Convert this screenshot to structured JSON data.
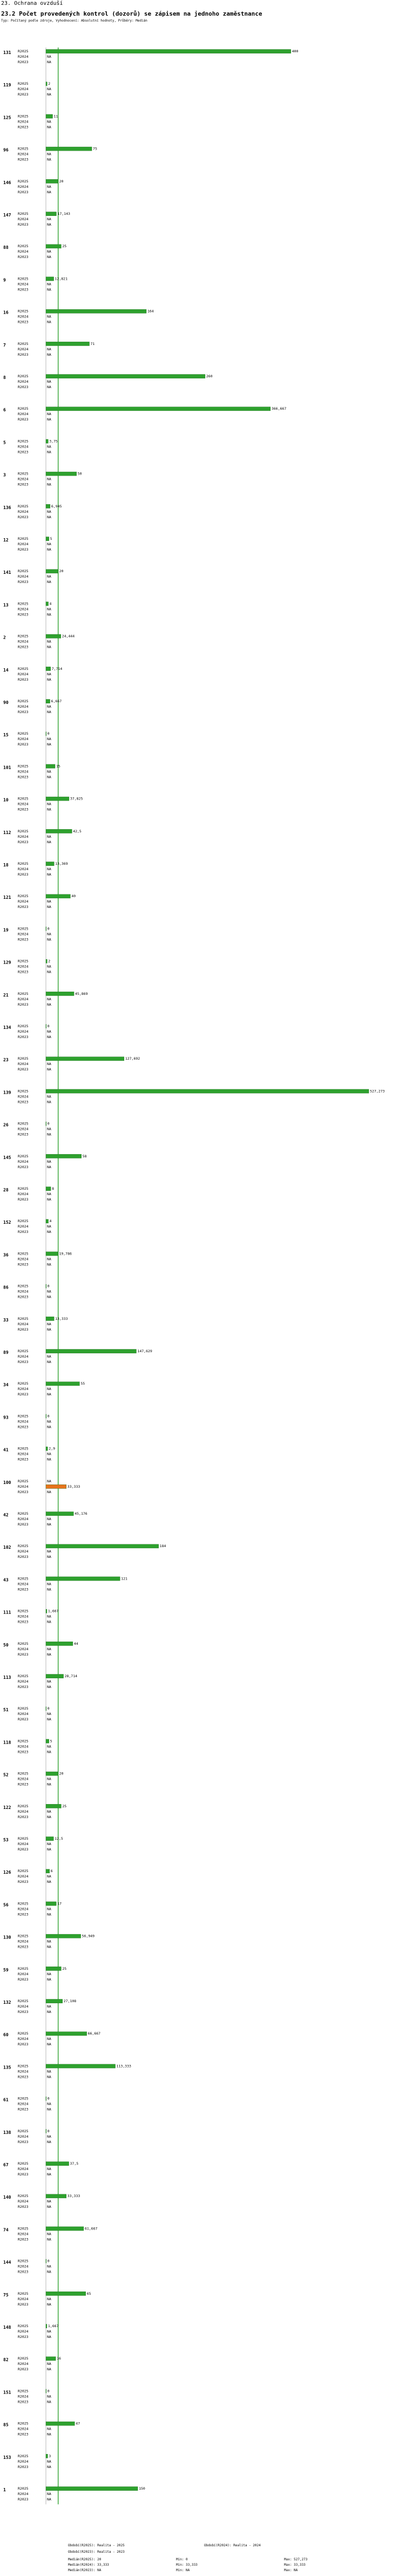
{
  "header": {
    "section": "23. Ochrana ovzduší",
    "title": "23.2 Počet provedených kontrol (dozorů) se zápisem na jednoho zaměstnance",
    "subtitle": "Typ: Počítaný podle zdroje, Vyhodnocení: Absolutní hodnoty, Průběry: Medián"
  },
  "footer": {
    "legend": [
      "Období(R2025): Realita - 2025",
      "Období(R2024): Realita - 2024",
      "Období(R2023): Realita - 2023"
    ],
    "stats_labels": [
      "Medián(R2025): 20",
      "Medián(R2024): 33,333",
      "Medián(R2023): NA"
    ],
    "stats_min": [
      "Min: 0",
      "Min: 33,333",
      "Min: NA"
    ],
    "stats_max": [
      "Max: 527,273",
      "Max: 33,333",
      "Max: NA"
    ]
  },
  "chart_data": {
    "type": "bar",
    "orientation": "horizontal",
    "periods": [
      "R2025",
      "R2024",
      "R2023"
    ],
    "xlim": [
      0,
      527.273
    ],
    "median_line": 20,
    "colors": {
      "default": "#2ea12e",
      "highlight": "#e8741c",
      "median": "#2ea12e"
    },
    "groups": [
      {
        "category": "131",
        "values": [
          400,
          null,
          null
        ],
        "labels": [
          "400",
          "NA",
          "NA"
        ]
      },
      {
        "category": "119",
        "values": [
          2,
          null,
          null
        ],
        "labels": [
          "2",
          "NA",
          "NA"
        ]
      },
      {
        "category": "125",
        "values": [
          11,
          null,
          null
        ],
        "labels": [
          "11",
          "NA",
          "NA"
        ]
      },
      {
        "category": "96",
        "values": [
          75,
          null,
          null
        ],
        "labels": [
          "75",
          "NA",
          "NA"
        ]
      },
      {
        "category": "146",
        "values": [
          20,
          null,
          null
        ],
        "labels": [
          "20",
          "NA",
          "NA"
        ]
      },
      {
        "category": "147",
        "values": [
          17.143,
          null,
          null
        ],
        "labels": [
          "17,143",
          "NA",
          "NA"
        ]
      },
      {
        "category": "88",
        "values": [
          25,
          null,
          null
        ],
        "labels": [
          "25",
          "NA",
          "NA"
        ]
      },
      {
        "category": "9",
        "values": [
          12.821,
          null,
          null
        ],
        "labels": [
          "12,821",
          "NA",
          "NA"
        ]
      },
      {
        "category": "16",
        "values": [
          164,
          null,
          null
        ],
        "labels": [
          "164",
          "NA",
          "NA"
        ]
      },
      {
        "category": "7",
        "values": [
          71,
          null,
          null
        ],
        "labels": [
          "71",
          "NA",
          "NA"
        ]
      },
      {
        "category": "8",
        "values": [
          260,
          null,
          null
        ],
        "labels": [
          "260",
          "NA",
          "NA"
        ]
      },
      {
        "category": "6",
        "values": [
          366.667,
          null,
          null
        ],
        "labels": [
          "366,667",
          "NA",
          "NA"
        ]
      },
      {
        "category": "5",
        "values": [
          3.75,
          null,
          null
        ],
        "labels": [
          "3,75",
          "NA",
          "NA"
        ]
      },
      {
        "category": "3",
        "values": [
          50,
          null,
          null
        ],
        "labels": [
          "50",
          "NA",
          "NA"
        ]
      },
      {
        "category": "136",
        "values": [
          6.945,
          null,
          null
        ],
        "labels": [
          "6,945",
          "NA",
          "NA"
        ]
      },
      {
        "category": "12",
        "values": [
          5,
          null,
          null
        ],
        "labels": [
          "5",
          "NA",
          "NA"
        ]
      },
      {
        "category": "141",
        "values": [
          20,
          null,
          null
        ],
        "labels": [
          "20",
          "NA",
          "NA"
        ]
      },
      {
        "category": "13",
        "values": [
          4,
          null,
          null
        ],
        "labels": [
          "4",
          "NA",
          "NA"
        ]
      },
      {
        "category": "2",
        "values": [
          24.444,
          null,
          null
        ],
        "labels": [
          "24,444",
          "NA",
          "NA"
        ]
      },
      {
        "category": "14",
        "values": [
          7.714,
          null,
          null
        ],
        "labels": [
          "7,714",
          "NA",
          "NA"
        ]
      },
      {
        "category": "90",
        "values": [
          6.667,
          null,
          null
        ],
        "labels": [
          "6,667",
          "NA",
          "NA"
        ]
      },
      {
        "category": "15",
        "values": [
          0,
          null,
          null
        ],
        "labels": [
          "0",
          "NA",
          "NA"
        ]
      },
      {
        "category": "101",
        "values": [
          15,
          null,
          null
        ],
        "labels": [
          "15",
          "NA",
          "NA"
        ]
      },
      {
        "category": "10",
        "values": [
          37.825,
          null,
          null
        ],
        "labels": [
          "37,825",
          "NA",
          "NA"
        ]
      },
      {
        "category": "112",
        "values": [
          42.5,
          null,
          null
        ],
        "labels": [
          "42,5",
          "NA",
          "NA"
        ]
      },
      {
        "category": "18",
        "values": [
          13.369,
          null,
          null
        ],
        "labels": [
          "13,369",
          "NA",
          "NA"
        ]
      },
      {
        "category": "121",
        "values": [
          40,
          null,
          null
        ],
        "labels": [
          "40",
          "NA",
          "NA"
        ]
      },
      {
        "category": "19",
        "values": [
          0,
          null,
          null
        ],
        "labels": [
          "0",
          "NA",
          "NA"
        ]
      },
      {
        "category": "129",
        "values": [
          2,
          null,
          null
        ],
        "labels": [
          "2",
          "NA",
          "NA"
        ]
      },
      {
        "category": "21",
        "values": [
          45.869,
          null,
          null
        ],
        "labels": [
          "45,869",
          "NA",
          "NA"
        ]
      },
      {
        "category": "134",
        "values": [
          0,
          null,
          null
        ],
        "labels": [
          "0",
          "NA",
          "NA"
        ]
      },
      {
        "category": "23",
        "values": [
          127.692,
          null,
          null
        ],
        "labels": [
          "127,692",
          "NA",
          "NA"
        ]
      },
      {
        "category": "139",
        "values": [
          527.273,
          null,
          null
        ],
        "labels": [
          "527,273",
          "NA",
          "NA"
        ]
      },
      {
        "category": "26",
        "values": [
          0,
          null,
          null
        ],
        "labels": [
          "0",
          "NA",
          "NA"
        ]
      },
      {
        "category": "145",
        "values": [
          58,
          null,
          null
        ],
        "labels": [
          "58",
          "NA",
          "NA"
        ]
      },
      {
        "category": "28",
        "values": [
          8,
          null,
          null
        ],
        "labels": [
          "8",
          "NA",
          "NA"
        ]
      },
      {
        "category": "152",
        "values": [
          4,
          null,
          null
        ],
        "labels": [
          "4",
          "NA",
          "NA"
        ]
      },
      {
        "category": "36",
        "values": [
          19.786,
          null,
          null
        ],
        "labels": [
          "19,786",
          "NA",
          "NA"
        ]
      },
      {
        "category": "86",
        "values": [
          0,
          null,
          null
        ],
        "labels": [
          "0",
          "NA",
          "NA"
        ]
      },
      {
        "category": "33",
        "values": [
          13.333,
          null,
          null
        ],
        "labels": [
          "13,333",
          "NA",
          "NA"
        ]
      },
      {
        "category": "89",
        "values": [
          147.629,
          null,
          null
        ],
        "labels": [
          "147,629",
          "NA",
          "NA"
        ]
      },
      {
        "category": "34",
        "values": [
          55,
          null,
          null
        ],
        "labels": [
          "55",
          "NA",
          "NA"
        ]
      },
      {
        "category": "93",
        "values": [
          0,
          null,
          null
        ],
        "labels": [
          "0",
          "NA",
          "NA"
        ]
      },
      {
        "category": "41",
        "values": [
          2.9,
          null,
          null
        ],
        "labels": [
          "2,9",
          "NA",
          "NA"
        ]
      },
      {
        "category": "100",
        "values": [
          null,
          33.333,
          null
        ],
        "labels": [
          "NA",
          "33,333",
          "NA"
        ],
        "highlight": 1
      },
      {
        "category": "42",
        "values": [
          45.176,
          null,
          null
        ],
        "labels": [
          "45,176",
          "NA",
          "NA"
        ]
      },
      {
        "category": "102",
        "values": [
          184,
          null,
          null
        ],
        "labels": [
          "184",
          "NA",
          "NA"
        ]
      },
      {
        "category": "43",
        "values": [
          121,
          null,
          null
        ],
        "labels": [
          "121",
          "NA",
          "NA"
        ]
      },
      {
        "category": "111",
        "values": [
          1.667,
          null,
          null
        ],
        "labels": [
          "1,667",
          "NA",
          "NA"
        ]
      },
      {
        "category": "50",
        "values": [
          44,
          null,
          null
        ],
        "labels": [
          "44",
          "NA",
          "NA"
        ]
      },
      {
        "category": "113",
        "values": [
          28.714,
          null,
          null
        ],
        "labels": [
          "28,714",
          "NA",
          "NA"
        ]
      },
      {
        "category": "51",
        "values": [
          0,
          null,
          null
        ],
        "labels": [
          "0",
          "NA",
          "NA"
        ]
      },
      {
        "category": "118",
        "values": [
          5,
          null,
          null
        ],
        "labels": [
          "5",
          "NA",
          "NA"
        ]
      },
      {
        "category": "52",
        "values": [
          20,
          null,
          null
        ],
        "labels": [
          "20",
          "NA",
          "NA"
        ]
      },
      {
        "category": "122",
        "values": [
          25,
          null,
          null
        ],
        "labels": [
          "25",
          "NA",
          "NA"
        ]
      },
      {
        "category": "53",
        "values": [
          12.5,
          null,
          null
        ],
        "labels": [
          "12,5",
          "NA",
          "NA"
        ]
      },
      {
        "category": "126",
        "values": [
          6,
          null,
          null
        ],
        "labels": [
          "6",
          "NA",
          "NA"
        ]
      },
      {
        "category": "56",
        "values": [
          17,
          null,
          null
        ],
        "labels": [
          "17",
          "NA",
          "NA"
        ]
      },
      {
        "category": "130",
        "values": [
          56.949,
          null,
          null
        ],
        "labels": [
          "56,949",
          "NA",
          "NA"
        ]
      },
      {
        "category": "59",
        "values": [
          25,
          null,
          null
        ],
        "labels": [
          "25",
          "NA",
          "NA"
        ]
      },
      {
        "category": "132",
        "values": [
          27.108,
          null,
          null
        ],
        "labels": [
          "27,108",
          "NA",
          "NA"
        ]
      },
      {
        "category": "60",
        "values": [
          66.667,
          null,
          null
        ],
        "labels": [
          "66,667",
          "NA",
          "NA"
        ]
      },
      {
        "category": "135",
        "values": [
          113.333,
          null,
          null
        ],
        "labels": [
          "113,333",
          "NA",
          "NA"
        ]
      },
      {
        "category": "61",
        "values": [
          0,
          null,
          null
        ],
        "labels": [
          "0",
          "NA",
          "NA"
        ]
      },
      {
        "category": "138",
        "values": [
          0,
          null,
          null
        ],
        "labels": [
          "0",
          "NA",
          "NA"
        ]
      },
      {
        "category": "67",
        "values": [
          37.5,
          null,
          null
        ],
        "labels": [
          "37,5",
          "NA",
          "NA"
        ]
      },
      {
        "category": "140",
        "values": [
          33.333,
          null,
          null
        ],
        "labels": [
          "33,333",
          "NA",
          "NA"
        ]
      },
      {
        "category": "74",
        "values": [
          61.667,
          null,
          null
        ],
        "labels": [
          "61,667",
          "NA",
          "NA"
        ]
      },
      {
        "category": "144",
        "values": [
          0,
          null,
          null
        ],
        "labels": [
          "0",
          "NA",
          "NA"
        ]
      },
      {
        "category": "75",
        "values": [
          65,
          null,
          null
        ],
        "labels": [
          "65",
          "NA",
          "NA"
        ]
      },
      {
        "category": "148",
        "values": [
          1.667,
          null,
          null
        ],
        "labels": [
          "1,667",
          "NA",
          "NA"
        ]
      },
      {
        "category": "82",
        "values": [
          16,
          null,
          null
        ],
        "labels": [
          "16",
          "NA",
          "NA"
        ]
      },
      {
        "category": "151",
        "values": [
          0,
          null,
          null
        ],
        "labels": [
          "0",
          "NA",
          "NA"
        ]
      },
      {
        "category": "85",
        "values": [
          47,
          null,
          null
        ],
        "labels": [
          "47",
          "NA",
          "NA"
        ]
      },
      {
        "category": "153",
        "values": [
          3,
          null,
          null
        ],
        "labels": [
          "3",
          "NA",
          "NA"
        ]
      },
      {
        "category": "1",
        "values": [
          150,
          null,
          null
        ],
        "labels": [
          "150",
          "NA",
          "NA"
        ]
      }
    ]
  }
}
